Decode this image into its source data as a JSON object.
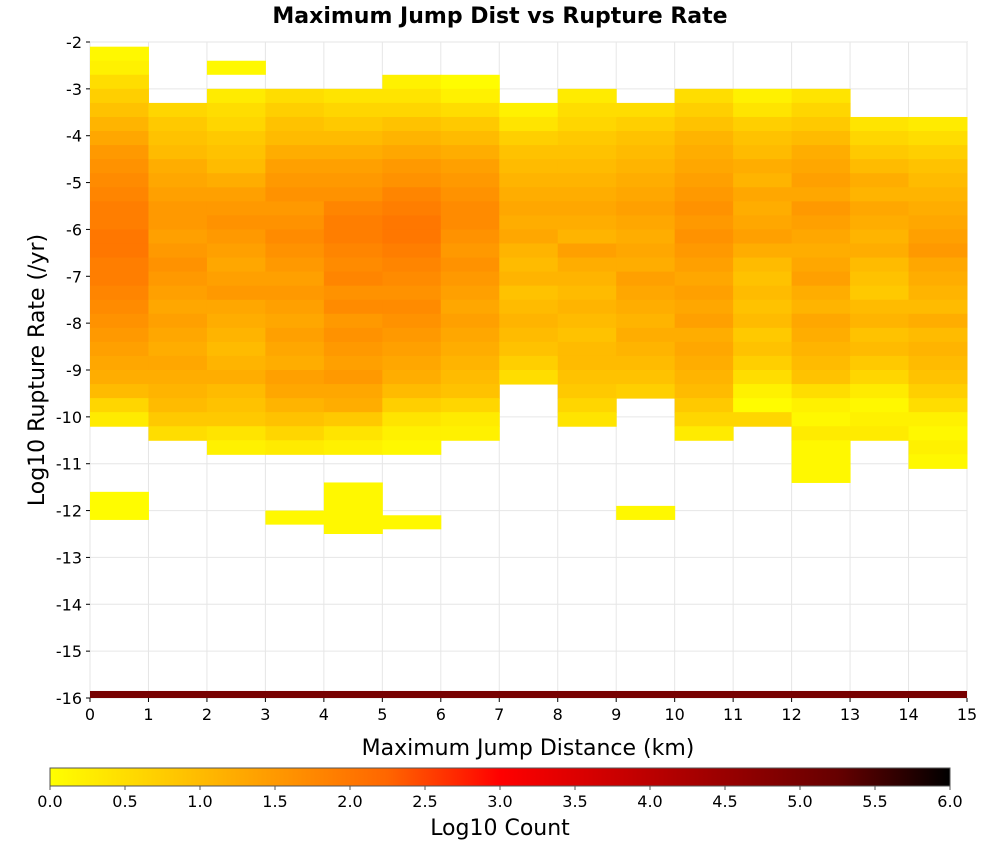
{
  "chart_data": {
    "type": "heatmap",
    "title": "Maximum Jump Dist vs Rupture Rate",
    "xlabel": "Maximum Jump Distance (km)",
    "ylabel": "Log10 Rupture Rate (/yr)",
    "xlim": [
      0,
      15
    ],
    "ylim": [
      -16,
      -2
    ],
    "x_ticks": [
      "0",
      "1",
      "2",
      "3",
      "4",
      "5",
      "6",
      "7",
      "8",
      "9",
      "10",
      "11",
      "12",
      "13",
      "14",
      "15"
    ],
    "y_ticks": [
      "-2",
      "-3",
      "-4",
      "-5",
      "-6",
      "-7",
      "-8",
      "-9",
      "-10",
      "-11",
      "-12",
      "-13",
      "-14",
      "-15",
      "-16"
    ],
    "grid": true,
    "colorbar": {
      "label": "Log10 Count",
      "range": [
        0,
        6
      ],
      "ticks": [
        "0.0",
        "0.5",
        "1.0",
        "1.5",
        "2.0",
        "2.5",
        "3.0",
        "3.5",
        "4.0",
        "4.5",
        "5.0",
        "5.5",
        "6.0"
      ],
      "placement": "bottom",
      "colors": [
        "#ffff00",
        "#ffcc00",
        "#ff9900",
        "#ff6600",
        "#ff0000",
        "#cc0000",
        "#990000",
        "#660000",
        "#000000"
      ]
    },
    "x_bin_width_km": 1,
    "y_bin_height_log10": 0.3,
    "columns": [
      {
        "x": 0.5,
        "y_top": -2.1,
        "values": [
          0.1,
          0.2,
          0.5,
          0.7,
          0.9,
          1.1,
          1.3,
          1.5,
          1.6,
          1.7,
          1.8,
          1.9,
          1.9,
          2.0,
          2.0,
          1.9,
          1.9,
          1.8,
          1.7,
          1.6,
          1.5,
          1.4,
          1.3,
          1.2,
          1.0,
          0.6,
          0.3
        ],
        "extra": [
          {
            "y_top": -11.6,
            "y_bottom": -12.2,
            "value": 0.05
          }
        ]
      },
      {
        "x": 1.5,
        "y_top": -3.3,
        "values": [
          0.6,
          0.8,
          0.9,
          1.0,
          1.2,
          1.3,
          1.4,
          1.5,
          1.5,
          1.4,
          1.5,
          1.6,
          1.5,
          1.4,
          1.3,
          1.4,
          1.3,
          1.2,
          1.3,
          1.2,
          1.1,
          1.0,
          0.8,
          0.5
        ],
        "extra": []
      },
      {
        "x": 2.5,
        "y_top": -3.0,
        "values": [
          0.3,
          0.5,
          0.6,
          0.8,
          0.9,
          1.0,
          1.2,
          1.4,
          1.5,
          1.6,
          1.5,
          1.4,
          1.3,
          1.4,
          1.5,
          1.3,
          1.2,
          1.1,
          1.0,
          1.1,
          1.2,
          1.0,
          0.9,
          0.8,
          0.4,
          0.2
        ],
        "extra": [
          {
            "y_top": -2.4,
            "y_bottom": -2.7,
            "value": 0.1
          }
        ]
      },
      {
        "x": 3.5,
        "y_top": -3.0,
        "values": [
          0.5,
          0.7,
          0.9,
          1.0,
          1.2,
          1.4,
          1.5,
          1.6,
          1.5,
          1.6,
          1.7,
          1.6,
          1.5,
          1.4,
          1.5,
          1.4,
          1.3,
          1.4,
          1.3,
          1.2,
          1.4,
          1.3,
          1.1,
          0.9,
          0.6,
          0.3
        ],
        "extra": [
          {
            "y_top": -12.0,
            "y_bottom": -12.3,
            "value": 0.1
          }
        ]
      },
      {
        "x": 4.5,
        "y_top": -3.0,
        "values": [
          0.4,
          0.6,
          0.8,
          1.0,
          1.2,
          1.4,
          1.5,
          1.6,
          1.8,
          1.9,
          1.9,
          1.8,
          1.7,
          1.8,
          1.6,
          1.7,
          1.5,
          1.6,
          1.5,
          1.4,
          1.5,
          1.3,
          1.2,
          0.8,
          0.4,
          0.2
        ],
        "extra": [
          {
            "y_top": -11.4,
            "y_bottom": -12.5,
            "value": 0.1
          }
        ]
      },
      {
        "x": 5.5,
        "y_top": -2.7,
        "values": [
          0.2,
          0.4,
          0.6,
          0.9,
          1.1,
          1.3,
          1.5,
          1.6,
          1.8,
          1.9,
          2.0,
          2.0,
          1.9,
          1.8,
          1.7,
          1.6,
          1.7,
          1.6,
          1.5,
          1.4,
          1.3,
          1.2,
          1.0,
          0.7,
          0.4,
          0.2,
          0.1
        ],
        "extra": [
          {
            "y_top": -12.1,
            "y_bottom": -12.4,
            "value": 0.1
          }
        ]
      },
      {
        "x": 6.5,
        "y_top": -2.7,
        "values": [
          0.05,
          0.2,
          0.5,
          0.8,
          1.0,
          1.2,
          1.4,
          1.5,
          1.6,
          1.7,
          1.7,
          1.6,
          1.5,
          1.6,
          1.5,
          1.4,
          1.3,
          1.4,
          1.3,
          1.2,
          1.1,
          1.0,
          0.9,
          0.6,
          0.3,
          0.2
        ],
        "extra": []
      },
      {
        "x": 7.5,
        "y_top": -3.3,
        "values": [
          0.2,
          0.4,
          0.7,
          0.9,
          1.0,
          1.1,
          1.2,
          1.3,
          1.2,
          1.3,
          1.1,
          1.0,
          1.1,
          0.9,
          1.0,
          1.1,
          1.0,
          0.9,
          0.7,
          0.5
        ],
        "extra": []
      },
      {
        "x": 8.5,
        "y_top": -3.0,
        "values": [
          0.3,
          0.5,
          0.6,
          0.8,
          0.9,
          1.0,
          1.1,
          1.2,
          1.3,
          1.2,
          1.1,
          1.4,
          1.2,
          1.1,
          1.0,
          1.1,
          1.0,
          0.9,
          1.0,
          1.0,
          0.9,
          0.8,
          0.6,
          0.4
        ],
        "extra": []
      },
      {
        "x": 9.5,
        "y_top": -3.3,
        "values": [
          0.5,
          0.7,
          0.9,
          1.0,
          1.1,
          1.2,
          1.3,
          1.4,
          1.3,
          1.2,
          1.3,
          1.2,
          1.4,
          1.3,
          1.2,
          1.1,
          1.2,
          1.1,
          1.0,
          0.9,
          0.7
        ],
        "extra": [
          {
            "y_top": -11.9,
            "y_bottom": -12.2,
            "value": 0.1
          }
        ]
      },
      {
        "x": 10.5,
        "y_top": -3.0,
        "values": [
          0.5,
          0.7,
          0.9,
          1.1,
          1.2,
          1.3,
          1.4,
          1.5,
          1.6,
          1.5,
          1.6,
          1.5,
          1.4,
          1.3,
          1.4,
          1.3,
          1.4,
          1.2,
          1.3,
          1.2,
          1.1,
          1.0,
          0.8,
          0.6,
          0.3
        ],
        "extra": []
      },
      {
        "x": 11.5,
        "y_top": -3.0,
        "values": [
          0.2,
          0.4,
          0.7,
          0.9,
          1.0,
          1.2,
          1.1,
          1.3,
          1.2,
          1.3,
          1.4,
          1.2,
          1.0,
          0.9,
          1.0,
          0.9,
          1.0,
          0.8,
          0.9,
          0.7,
          0.5,
          0.2,
          0.05,
          0.6
        ],
        "extra": []
      },
      {
        "x": 12.5,
        "y_top": -3.0,
        "values": [
          0.4,
          0.6,
          0.8,
          1.0,
          1.2,
          1.3,
          1.4,
          1.3,
          1.5,
          1.4,
          1.3,
          1.2,
          1.3,
          1.4,
          1.2,
          1.1,
          1.3,
          1.2,
          1.1,
          1.0,
          0.9,
          0.5,
          0.2,
          0.1,
          0.3,
          0.1,
          0.1,
          0.1
        ],
        "extra": []
      },
      {
        "x": 13.5,
        "y_top": -3.6,
        "values": [
          0.4,
          0.6,
          0.8,
          1.0,
          1.2,
          1.1,
          1.3,
          1.2,
          1.1,
          1.2,
          1.0,
          0.9,
          0.8,
          1.0,
          1.1,
          0.9,
          1.0,
          0.8,
          0.6,
          0.3,
          0.1,
          0.2,
          0.3
        ],
        "extra": []
      },
      {
        "x": 14.5,
        "y_top": -3.6,
        "values": [
          0.3,
          0.5,
          0.7,
          0.9,
          1.0,
          1.1,
          1.2,
          1.3,
          1.4,
          1.5,
          1.3,
          1.2,
          1.1,
          1.0,
          1.2,
          1.0,
          1.1,
          1.0,
          0.9,
          0.7,
          0.5,
          0.2,
          0.1,
          0.2,
          0.1
        ],
        "extra": []
      }
    ],
    "bottom_row": {
      "y_top": -15.85,
      "y_bottom": -16.0,
      "value": 5.0
    }
  }
}
